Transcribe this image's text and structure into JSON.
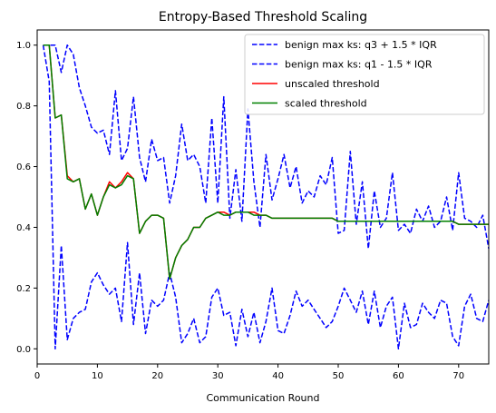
{
  "chart_data": {
    "type": "line",
    "title": "Entropy-Based Threshold Scaling",
    "xlabel": "Communication Round",
    "ylabel": "",
    "xlim": [
      0,
      75
    ],
    "ylim": [
      -0.05,
      1.05
    ],
    "xticks": [
      "0",
      "10",
      "20",
      "30",
      "40",
      "50",
      "60",
      "70"
    ],
    "yticks": [
      "0.0",
      "0.2",
      "0.4",
      "0.6",
      "0.8",
      "1.0"
    ],
    "grid": false,
    "legend_position": "top-right",
    "x": [
      1,
      2,
      3,
      4,
      5,
      6,
      7,
      8,
      9,
      10,
      11,
      12,
      13,
      14,
      15,
      16,
      17,
      18,
      19,
      20,
      21,
      22,
      23,
      24,
      25,
      26,
      27,
      28,
      29,
      30,
      31,
      32,
      33,
      34,
      35,
      36,
      37,
      38,
      39,
      40,
      41,
      42,
      43,
      44,
      45,
      46,
      47,
      48,
      49,
      50,
      51,
      52,
      53,
      54,
      55,
      56,
      57,
      58,
      59,
      60,
      61,
      62,
      63,
      64,
      65,
      66,
      67,
      68,
      69,
      70,
      71,
      72,
      73,
      74,
      75
    ],
    "series": [
      {
        "name": "benign max ks: q3 + 1.5 * IQR",
        "color": "#0000ff",
        "style": "dashed",
        "values": [
          1.0,
          1.0,
          1.0,
          0.91,
          1.0,
          0.97,
          0.86,
          0.8,
          0.73,
          0.71,
          0.72,
          0.64,
          0.85,
          0.62,
          0.66,
          0.83,
          0.63,
          0.55,
          0.69,
          0.62,
          0.63,
          0.48,
          0.57,
          0.74,
          0.62,
          0.64,
          0.6,
          0.48,
          0.76,
          0.48,
          0.83,
          0.43,
          0.59,
          0.42,
          0.79,
          0.55,
          0.4,
          0.64,
          0.49,
          0.56,
          0.64,
          0.53,
          0.6,
          0.48,
          0.52,
          0.5,
          0.57,
          0.54,
          0.63,
          0.38,
          0.39,
          0.65,
          0.41,
          0.55,
          0.33,
          0.52,
          0.4,
          0.43,
          0.58,
          0.39,
          0.41,
          0.38,
          0.46,
          0.42,
          0.47,
          0.4,
          0.42,
          0.5,
          0.39,
          0.58,
          0.43,
          0.42,
          0.4,
          0.44,
          0.33
        ]
      },
      {
        "name": "benign max ks: q1 - 1.5 * IQR",
        "color": "#0000ff",
        "style": "dashed",
        "values": [
          1.0,
          0.88,
          0.0,
          0.34,
          0.03,
          0.1,
          0.12,
          0.13,
          0.22,
          0.25,
          0.21,
          0.18,
          0.2,
          0.09,
          0.35,
          0.08,
          0.25,
          0.05,
          0.16,
          0.14,
          0.16,
          0.25,
          0.17,
          0.02,
          0.05,
          0.1,
          0.02,
          0.04,
          0.17,
          0.2,
          0.11,
          0.12,
          0.01,
          0.13,
          0.04,
          0.12,
          0.02,
          0.09,
          0.2,
          0.06,
          0.05,
          0.11,
          0.19,
          0.14,
          0.16,
          0.13,
          0.1,
          0.07,
          0.09,
          0.14,
          0.2,
          0.16,
          0.12,
          0.19,
          0.08,
          0.19,
          0.07,
          0.14,
          0.17,
          0.0,
          0.15,
          0.07,
          0.08,
          0.15,
          0.12,
          0.1,
          0.16,
          0.15,
          0.04,
          0.01,
          0.14,
          0.18,
          0.1,
          0.09,
          0.16
        ]
      },
      {
        "name": "unscaled threshold",
        "color": "#ff0000",
        "style": "solid",
        "values": [
          1.0,
          1.0,
          0.76,
          0.77,
          0.57,
          0.55,
          0.56,
          0.46,
          0.51,
          0.44,
          0.5,
          0.55,
          0.53,
          0.55,
          0.58,
          0.56,
          0.38,
          0.42,
          0.44,
          0.44,
          0.43,
          0.23,
          0.3,
          0.34,
          0.36,
          0.4,
          0.4,
          0.43,
          0.44,
          0.45,
          0.45,
          0.44,
          0.45,
          0.45,
          0.45,
          0.45,
          0.44,
          0.44,
          0.43,
          0.43,
          0.43,
          0.43,
          0.43,
          0.43,
          0.43,
          0.43,
          0.43,
          0.43,
          0.43,
          0.42,
          0.42,
          0.42,
          0.42,
          0.42,
          0.42,
          0.42,
          0.42,
          0.42,
          0.42,
          0.42,
          0.42,
          0.42,
          0.42,
          0.42,
          0.42,
          0.42,
          0.42,
          0.42,
          0.42,
          0.41,
          0.41,
          0.41,
          0.41,
          0.41,
          0.41
        ]
      },
      {
        "name": "scaled threshold",
        "color": "#008000",
        "style": "solid",
        "values": [
          1.0,
          1.0,
          0.76,
          0.77,
          0.56,
          0.55,
          0.56,
          0.46,
          0.51,
          0.44,
          0.5,
          0.54,
          0.53,
          0.54,
          0.57,
          0.56,
          0.38,
          0.42,
          0.44,
          0.44,
          0.43,
          0.23,
          0.3,
          0.34,
          0.36,
          0.4,
          0.4,
          0.43,
          0.44,
          0.45,
          0.44,
          0.44,
          0.45,
          0.45,
          0.45,
          0.44,
          0.44,
          0.44,
          0.43,
          0.43,
          0.43,
          0.43,
          0.43,
          0.43,
          0.43,
          0.43,
          0.43,
          0.43,
          0.43,
          0.42,
          0.42,
          0.42,
          0.42,
          0.42,
          0.42,
          0.42,
          0.42,
          0.42,
          0.42,
          0.42,
          0.42,
          0.42,
          0.42,
          0.42,
          0.42,
          0.42,
          0.42,
          0.42,
          0.42,
          0.41,
          0.41,
          0.41,
          0.41,
          0.41,
          0.41
        ]
      }
    ]
  }
}
